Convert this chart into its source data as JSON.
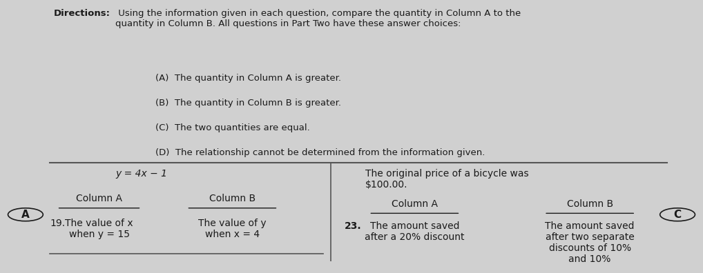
{
  "bg_color": "#d0d0d0",
  "panel_color": "#d8d8d8",
  "directions_title": "Directions:",
  "directions_text": " Using the information given in each question, compare the quantity in Column A to the\nquantity in Column B. All questions in Part Two have these answer choices:",
  "choices": [
    "(A)  The quantity in Column A is greater.",
    "(B)  The quantity in Column B is greater.",
    "(C)  The two quantities are equal.",
    "(D)  The relationship cannot be determined from the information given."
  ],
  "q19_context": "y = 4x − 1",
  "q19_col_a_header": "Column A",
  "q19_col_b_header": "Column B",
  "q19_num": "19.",
  "q19_col_a": "The value of x\nwhen y = 15",
  "q19_col_b": "The value of y\nwhen x = 4",
  "q23_context": "The original price of a bicycle was\n$100.00.",
  "q23_col_a_header": "Column A",
  "q23_col_b_header": "Column B",
  "q23_num": "23.",
  "q23_col_a": "The amount saved\nafter a 20% discount",
  "q23_col_b": "The amount saved\nafter two separate\ndiscounts of 10%\nand 10%",
  "answer_bubble_letter": "A",
  "answer_bubble_letter2": "C",
  "text_color": "#1a1a1a",
  "line_color": "#555555"
}
